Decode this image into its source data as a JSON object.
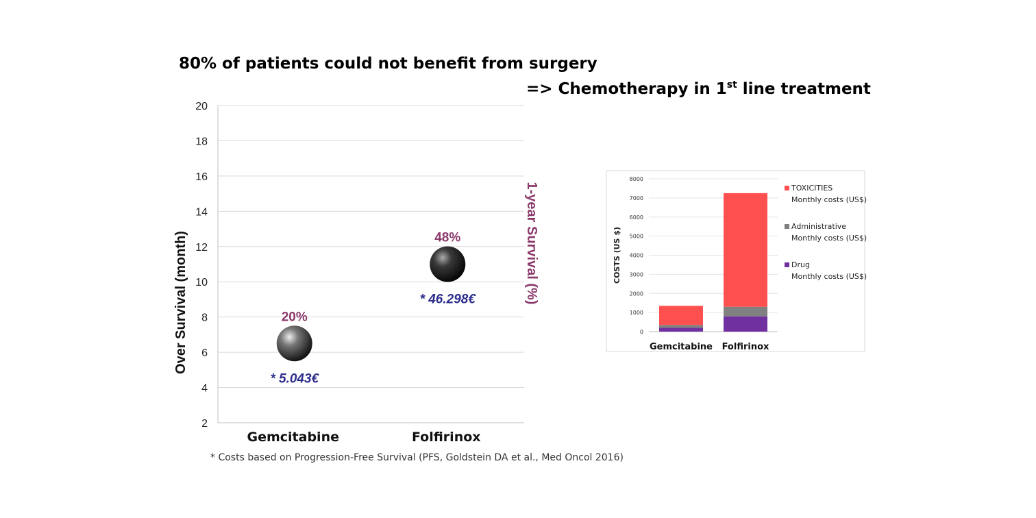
{
  "headline": {
    "line1": "80% of patients could not benefit from surgery",
    "line2_prefix": "=> Chemotherapy in 1",
    "line2_sup": "st",
    "line2_suffix": " line treatment"
  },
  "footnote": "* Costs based on Progression-Free Survival (PFS, Goldstein DA et al., Med Oncol 2016)",
  "colors": {
    "survival_label": "#8B3A6B",
    "cost_label": "#2E2E8C",
    "toxicities": "#FF5050",
    "administrative": "#808080",
    "drug": "#7030A0"
  },
  "chart_data": [
    {
      "type": "scatter",
      "categories": [
        "Gemcitabine",
        "Folfirinox"
      ],
      "values": [
        6.5,
        11
      ],
      "ylabel": "Over Survival (month)",
      "y2label": "1-year Survival (%)",
      "ylim": [
        2,
        20
      ],
      "yticks": [
        2,
        4,
        6,
        8,
        10,
        12,
        14,
        16,
        18,
        20
      ],
      "grid": true,
      "annotations": {
        "survival": [
          "20%",
          "48%"
        ],
        "cost": [
          "* 5.043€",
          "* 46.298€"
        ]
      }
    },
    {
      "type": "bar",
      "stacked": true,
      "categories": [
        "Gemcitabine",
        "Folfirinox"
      ],
      "ylabel": "COSTS (US $)",
      "ylim": [
        0,
        8000
      ],
      "yticks": [
        0,
        1000,
        2000,
        3000,
        4000,
        5000,
        6000,
        7000,
        8000
      ],
      "legend_position": "right",
      "series": [
        {
          "name": "Drug",
          "name_line2": "Monthly costs (US$)",
          "values": [
            200,
            800
          ]
        },
        {
          "name": "Administrative",
          "name_line2": "Monthly costs (US$)",
          "values": [
            150,
            500
          ]
        },
        {
          "name": "TOXICITIES",
          "name_line2": "Monthly costs (US$)",
          "values": [
            1000,
            5950
          ]
        }
      ]
    }
  ]
}
